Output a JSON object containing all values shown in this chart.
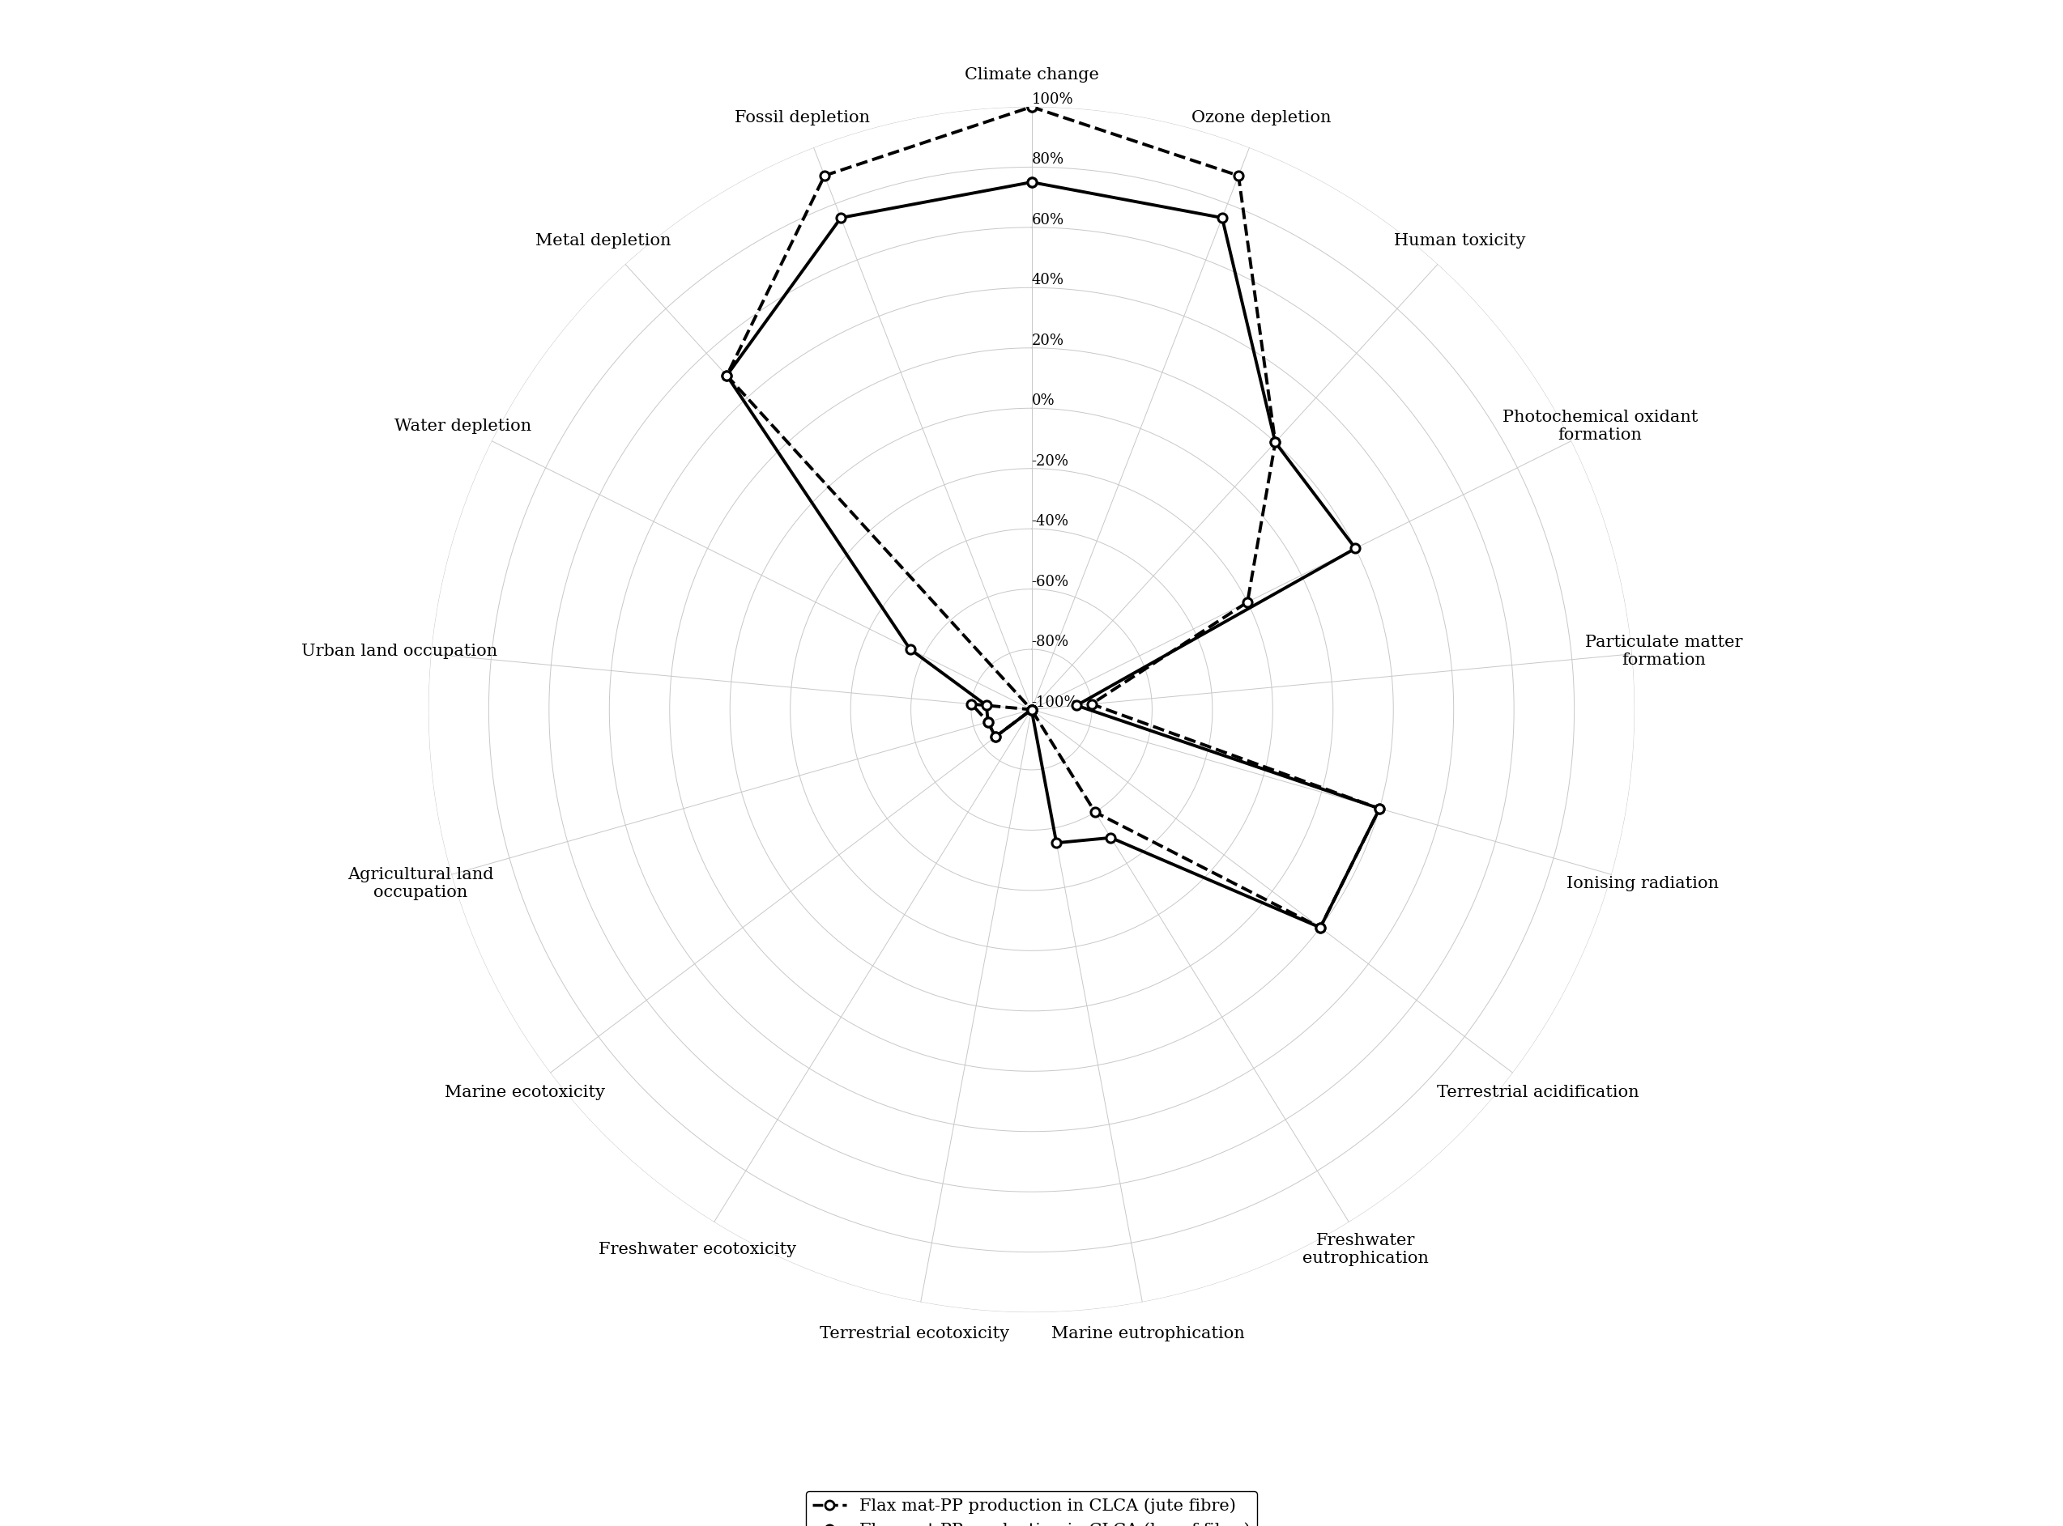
{
  "categories": [
    "Climate change",
    "Ozone depletion",
    "Human toxicity",
    "Photochemical oxidant\nformation",
    "Particulate matter\nformation",
    "Ionising radiation",
    "Terrestrial acidification",
    "Freshwater\neutrophication",
    "Marine eutrophication",
    "Terrestrial ecotoxicity",
    "Freshwater ecotoxicity",
    "Marine ecotoxicity",
    "Agricultural land\noccupation",
    "Urban land occupation",
    "Water depletion",
    "Metal depletion",
    "Fossil depletion"
  ],
  "jute_values": [
    100,
    90,
    20,
    -20,
    -80,
    20,
    20,
    -60,
    -100,
    -100,
    -100,
    -85,
    -85,
    -80,
    -100,
    50,
    90
  ],
  "kenaf_values": [
    75,
    75,
    20,
    20,
    -85,
    20,
    20,
    -50,
    -55,
    -100,
    -100,
    -85,
    -85,
    -85,
    -55,
    50,
    75
  ],
  "ylim_min": -100,
  "ylim_max": 100,
  "ytick_vals": [
    -100,
    -80,
    -60,
    -40,
    -20,
    0,
    20,
    40,
    60,
    80,
    100
  ],
  "ytick_labels": [
    "-100%",
    "-80%",
    "-60%",
    "-40%",
    "-20%",
    "0%",
    "20%",
    "40%",
    "60%",
    "80%",
    "100%"
  ],
  "legend_jute": "Flax mat-PP production in CLCA (jute fibre)",
  "legend_kenaf": "Flax mat-PP production in CLCA (kenaf fibre)",
  "background_color": "#ffffff",
  "line_color": "#000000",
  "grid_color": "#c8c8c8",
  "label_fontsize": 15,
  "tick_fontsize": 13,
  "legend_fontsize": 15
}
